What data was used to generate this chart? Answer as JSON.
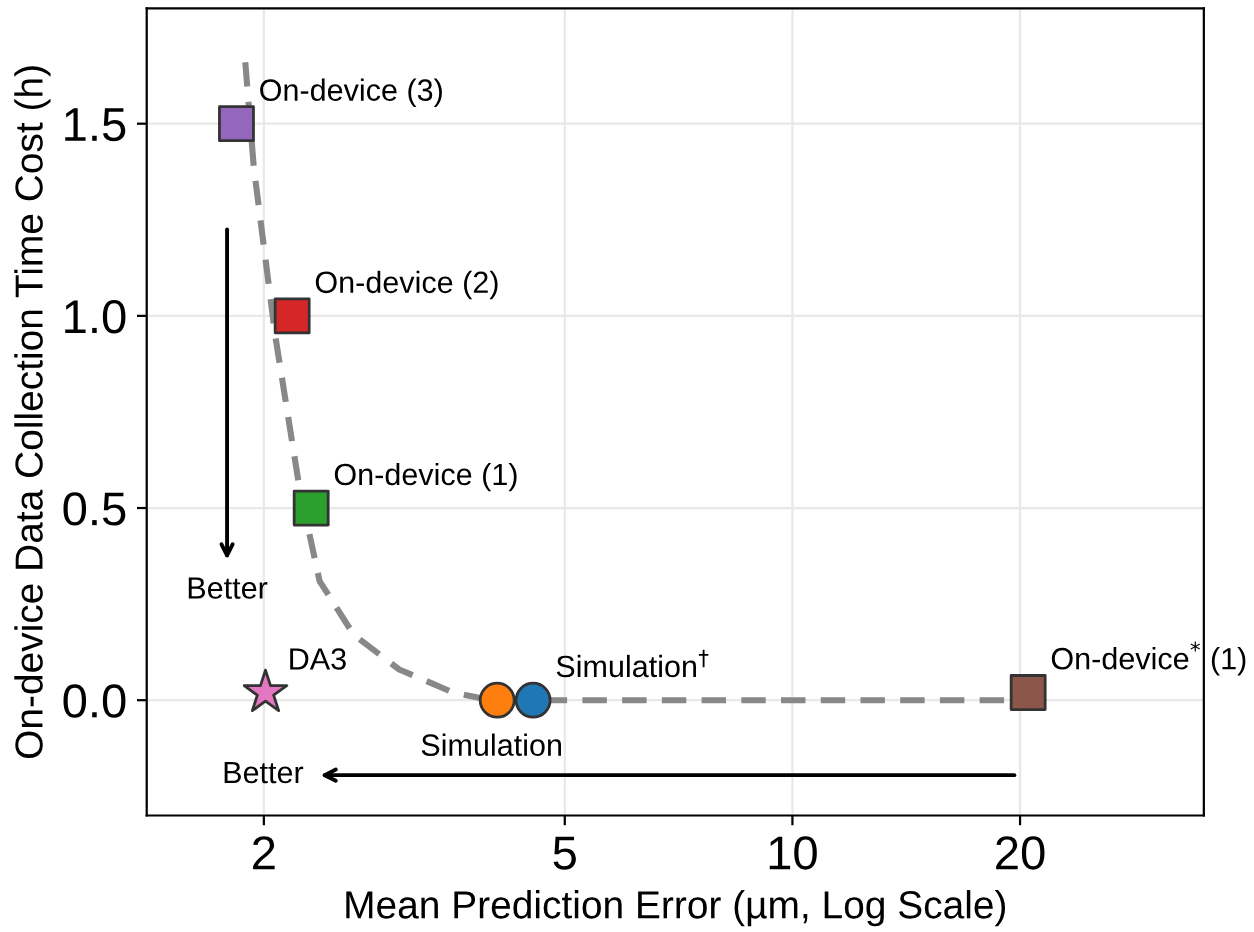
{
  "chart_data": {
    "type": "scatter",
    "xlabel": "Mean Prediction Error (µm, Log Scale)",
    "ylabel": "On-device Data Collection Time Cost (h)",
    "log": "x",
    "xlim": [
      1.4,
      35
    ],
    "xticks": [
      2,
      5,
      10,
      20
    ],
    "ylim": [
      -0.3,
      1.8
    ],
    "yticks": [
      {
        "value": 0,
        "label": "0.0"
      },
      0.5,
      {
        "value": 1,
        "label": "1.0"
      },
      1.5
    ],
    "grid": true,
    "legend": false,
    "series": [
      {
        "name": "On-device (3)",
        "color": "#9467bd",
        "marker": "square",
        "x": [
          1.84
        ],
        "values": [
          1.5
        ]
      },
      {
        "name": "On-device (2)",
        "color": "#d62728",
        "marker": "square",
        "x": [
          2.18
        ],
        "values": [
          1.0
        ]
      },
      {
        "name": "On-device (1)",
        "color": "#2ca02c",
        "marker": "square",
        "x": [
          2.31
        ],
        "values": [
          0.5
        ]
      },
      {
        "name": "DA3",
        "color": "#e377c2",
        "marker": "star",
        "x": [
          2.01
        ],
        "values": [
          0.02
        ]
      },
      {
        "name": "Simulation",
        "color": "#ff7f0e",
        "marker": "circle",
        "x": [
          4.07
        ],
        "values": [
          0.0
        ]
      },
      {
        "name": "Simulation$^{†}$",
        "color": "#1f77b4",
        "marker": "circle",
        "x": [
          4.54
        ],
        "values": [
          0.0
        ]
      },
      {
        "name": "On-device$^{*}$ (1)",
        "color": "#8c564b",
        "marker": "square",
        "x": [
          20.5
        ],
        "values": [
          0.02
        ]
      },
      {
        "type": "line",
        "color": "#888888",
        "line_style": "dashed",
        "marker": "none",
        "x": [
          1.89,
          1.94,
          2.07,
          2.23,
          2.37,
          2.63,
          3.02,
          3.56,
          4.0,
          20
        ],
        "values": [
          1.66,
          1.385,
          0.95,
          0.55,
          0.31,
          0.17,
          0.08,
          0.02,
          0.0,
          0.0
        ]
      }
    ],
    "annotations": [
      "Better",
      "Better"
    ]
  }
}
